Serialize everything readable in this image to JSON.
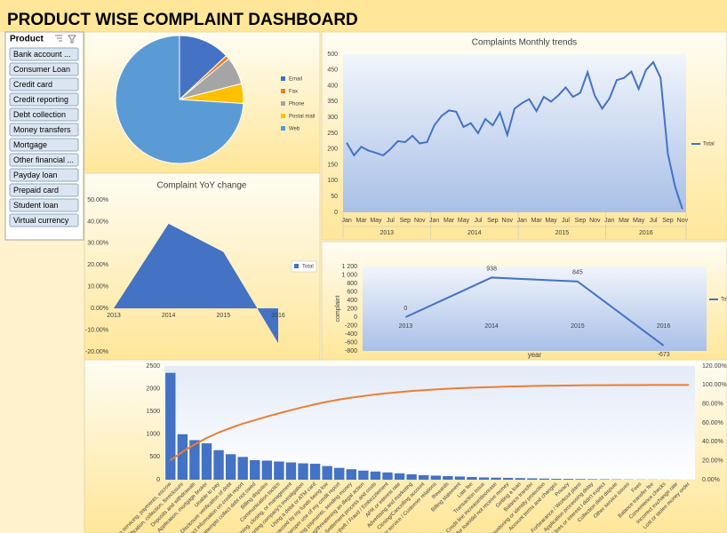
{
  "title": "PRODUCT WISE COMPLAINT DASHBOARD",
  "slicer": {
    "header": "Product",
    "items": [
      "Bank account ...",
      "Consumer Loan",
      "Credit card",
      "Credit reporting",
      "Debt collection",
      "Money transfers",
      "Mortgage",
      "Other financial ...",
      "Payday loan",
      "Prepaid card",
      "Student loan",
      "Virtual currency"
    ]
  },
  "chart_data": [
    {
      "type": "pie",
      "categories": [
        "Email",
        "Fax",
        "Phone",
        "Postal mail",
        "Web"
      ],
      "values": [
        13,
        1,
        7,
        5,
        74
      ],
      "colors": [
        "#4472c4",
        "#ed7d31",
        "#a5a5a5",
        "#ffc000",
        "#5b9bd5"
      ],
      "legend": "right"
    },
    {
      "type": "line",
      "title": "Complaints Monthly trends",
      "categories": [
        "Jan",
        null,
        "Mar",
        null,
        "May",
        null,
        "Jul",
        null,
        "Sep",
        null,
        "Nov",
        null,
        "Jan",
        null,
        "Mar",
        null,
        "May",
        null,
        "Jul",
        null,
        "Sep",
        null,
        "Nov",
        null,
        "Jan",
        null,
        "Mar",
        null,
        "May",
        null,
        "Jul",
        null,
        "Sep",
        null,
        "Nov",
        null,
        "Jan",
        null,
        "Mar",
        null,
        "May",
        null,
        "Jul",
        null,
        "Sep",
        null,
        "Nov"
      ],
      "groups": [
        "2013",
        "2014",
        "2015",
        "2016"
      ],
      "series": [
        {
          "name": "Total",
          "color": "#4472c4",
          "values": [
            220,
            180,
            207,
            195,
            188,
            180,
            200,
            225,
            222,
            242,
            218,
            222,
            275,
            305,
            322,
            318,
            270,
            282,
            250,
            295,
            275,
            315,
            245,
            328,
            345,
            358,
            320,
            365,
            350,
            370,
            395,
            365,
            378,
            443,
            368,
            328,
            360,
            418,
            425,
            445,
            390,
            450,
            475,
            425,
            185,
            80,
            10
          ]
        }
      ],
      "ylim": [
        0,
        500
      ],
      "yticks": [
        0,
        50,
        100,
        150,
        200,
        250,
        300,
        350,
        400,
        450,
        500
      ],
      "legend": "right"
    },
    {
      "type": "area",
      "title": "Complaint YoY change",
      "categories": [
        "2013",
        "2014",
        "2015",
        "2016"
      ],
      "series": [
        {
          "name": "Total",
          "color": "#4472c4",
          "values": [
            0,
            39,
            26,
            -16
          ]
        }
      ],
      "ylim": [
        -20,
        50
      ],
      "yticks": [
        {
          "value": -20,
          "label": "-20.00%"
        },
        {
          "value": -10,
          "label": "-10.00%"
        },
        {
          "value": 0,
          "label": "0.00%"
        },
        {
          "value": 10,
          "label": "10.00%"
        },
        {
          "value": 20,
          "label": "20.00%"
        },
        {
          "value": 30,
          "label": "30.00%"
        },
        {
          "value": 40,
          "label": "40.00%"
        },
        {
          "value": 50,
          "label": "50.00%"
        }
      ],
      "legend": "right"
    },
    {
      "type": "line",
      "categories": [
        "2013",
        "2014",
        "2015",
        "2016"
      ],
      "series": [
        {
          "name": "Total",
          "color": "#4472c4",
          "values": [
            0,
            938,
            845,
            -673
          ]
        }
      ],
      "data_labels": true,
      "xlabel": "year",
      "ylabel": "complaint",
      "ylim": [
        -800,
        1200
      ],
      "yticks": [
        -800,
        -600,
        -400,
        -200,
        0,
        200,
        400,
        600,
        800,
        {
          "value": 1000,
          "label": "1 000"
        },
        {
          "value": 1200,
          "label": "1 200"
        }
      ],
      "legend": "right"
    },
    {
      "type": "pareto",
      "categories": [
        "Loan servicing, payments, escrow",
        "Loan modification, collection, foreclosure",
        "Deposits and withdrawals",
        "Application, mortgage broker",
        "Unable to pay",
        "Disclosure verification of debt",
        "Incorrect information on credit report",
        "Cont'd attempts collect debt not owed",
        "Billing disputes",
        "Communication tactics",
        "Account opening, closing, or management",
        "Credit reporting company's investigation",
        "Using a debit or ATM card",
        "Problems caused by my funds being low",
        "Improper use of my credit report",
        "Making/receiving payments, sending money",
        "Taking/threatening an illegal action",
        "Settlement process and costs",
        "Identity theft / Fraud / Embezzlement",
        "APR or interest rate",
        "Advertising and marketing",
        "Closing/Cancelling account",
        "Customer service / Customer relations",
        "Rewards",
        "Billing statement",
        "Late fee",
        "Transaction issue",
        "Credit line increase/decrease",
        "Applied for loan/did not receive money",
        "Getting a loan",
        "Balance transfer",
        "Credit monitoring or identity protection",
        "Account terms and changes",
        "Privacy",
        "Forbearance / Workout plans",
        "Application processing delay",
        "Charged fees or interest I didn't expect",
        "Collection debt dispute",
        "Other service issues",
        "Fees",
        "Balance transfer fee",
        "Convenience checks",
        "Incorrect exchange rate",
        "Lost or stolen money order"
      ],
      "series": [
        {
          "color": "#4472c4",
          "values": [
            2350,
            1000,
            870,
            800,
            650,
            560,
            500,
            430,
            420,
            400,
            380,
            360,
            350,
            300,
            260,
            230,
            200,
            180,
            160,
            140,
            120,
            100,
            90,
            80,
            70,
            60,
            50,
            45,
            40,
            35,
            30,
            25,
            20,
            18,
            15,
            12,
            10,
            8,
            6,
            5,
            4,
            3,
            2,
            1
          ]
        },
        {
          "color": "#ed7d31",
          "axis": "y2",
          "values": [
            20.6,
            29.4,
            37.1,
            44.1,
            49.8,
            54.7,
            59.1,
            62.9,
            66.6,
            70.1,
            73.4,
            76.6,
            79.6,
            82.3,
            84.6,
            86.6,
            88.3,
            89.9,
            91.3,
            92.5,
            93.6,
            94.5,
            95.3,
            96.0,
            96.6,
            97.1,
            97.5,
            97.9,
            98.3,
            98.6,
            98.9,
            99.1,
            99.3,
            99.4,
            99.6,
            99.7,
            99.7,
            99.8,
            99.9,
            99.9,
            100,
            100,
            100,
            100
          ]
        }
      ],
      "ylim": [
        0,
        2500
      ],
      "yticks": [
        0,
        500,
        1000,
        1500,
        2000,
        2500
      ],
      "y2lim": [
        0,
        120
      ],
      "y2ticks": [
        {
          "value": 0,
          "label": "0.00%"
        },
        {
          "value": 20,
          "label": "20.00%"
        },
        {
          "value": 40,
          "label": "40.00%"
        },
        {
          "value": 60,
          "label": "60.00%"
        },
        {
          "value": 80,
          "label": "80.00%"
        },
        {
          "value": 100,
          "label": "100.00%"
        },
        {
          "value": 120,
          "label": "120.00%"
        }
      ]
    }
  ]
}
